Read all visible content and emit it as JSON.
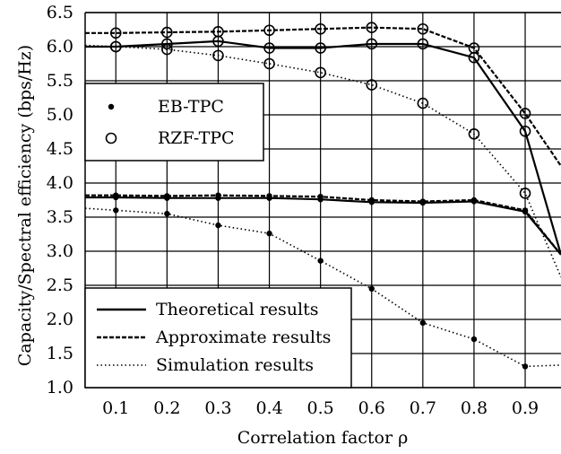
{
  "chart_data": {
    "type": "line",
    "title": "",
    "xlabel": "Correlation factor ρ",
    "ylabel": "Capacity/Spectral efficiency (bps/Hz)",
    "xlim": [
      0.04,
      0.97
    ],
    "ylim": [
      1.0,
      6.5
    ],
    "xticks": [
      "0.1",
      "0.2",
      "0.3",
      "0.4",
      "0.5",
      "0.6",
      "0.7",
      "0.8",
      "0.9"
    ],
    "yticks": [
      "1.0",
      "1.5",
      "2.0",
      "2.5",
      "3.0",
      "3.5",
      "4.0",
      "4.5",
      "5.0",
      "5.5",
      "6.0",
      "6.5"
    ],
    "grid": true,
    "series": [
      {
        "name": "RZF-TPC, Theoretical results",
        "scheme": "RZF-TPC",
        "style": "solid",
        "marker": "circle",
        "x": [
          0.04,
          0.1,
          0.2,
          0.3,
          0.4,
          0.5,
          0.6,
          0.7,
          0.8,
          0.9,
          0.97
        ],
        "y": [
          6.0,
          6.0,
          6.04,
          6.08,
          5.98,
          5.98,
          6.04,
          6.04,
          5.84,
          4.76,
          2.95
        ]
      },
      {
        "name": "RZF-TPC, Approximate results",
        "scheme": "RZF-TPC",
        "style": "dashed",
        "marker": "circle",
        "x": [
          0.04,
          0.1,
          0.2,
          0.3,
          0.4,
          0.5,
          0.6,
          0.7,
          0.8,
          0.9,
          0.97
        ],
        "y": [
          6.2,
          6.2,
          6.21,
          6.22,
          6.24,
          6.26,
          6.28,
          6.26,
          5.98,
          5.02,
          4.25
        ]
      },
      {
        "name": "RZF-TPC, Simulation results",
        "scheme": "RZF-TPC",
        "style": "dotted",
        "marker": "circle",
        "x": [
          0.04,
          0.1,
          0.2,
          0.3,
          0.4,
          0.5,
          0.6,
          0.7,
          0.8,
          0.9,
          0.97
        ],
        "y": [
          6.02,
          6.0,
          5.96,
          5.87,
          5.75,
          5.62,
          5.44,
          5.17,
          4.72,
          3.85,
          2.62
        ]
      },
      {
        "name": "EB-TPC, Theoretical results",
        "scheme": "EB-TPC",
        "style": "solid",
        "marker": "dot",
        "x": [
          0.04,
          0.1,
          0.2,
          0.3,
          0.4,
          0.5,
          0.6,
          0.7,
          0.8,
          0.9,
          0.97
        ],
        "y": [
          3.79,
          3.79,
          3.78,
          3.78,
          3.78,
          3.76,
          3.72,
          3.71,
          3.73,
          3.58,
          2.95
        ]
      },
      {
        "name": "EB-TPC, Approximate results",
        "scheme": "EB-TPC",
        "style": "dashed",
        "marker": "dot",
        "x": [
          0.04,
          0.1,
          0.2,
          0.3,
          0.4,
          0.5,
          0.6,
          0.7,
          0.8,
          0.9,
          0.97
        ],
        "y": [
          3.82,
          3.82,
          3.81,
          3.82,
          3.81,
          3.8,
          3.75,
          3.73,
          3.75,
          3.6,
          2.95
        ]
      },
      {
        "name": "EB-TPC, Simulation results",
        "scheme": "EB-TPC",
        "style": "dotted",
        "marker": "dot",
        "x": [
          0.04,
          0.1,
          0.2,
          0.3,
          0.4,
          0.5,
          0.6,
          0.7,
          0.8,
          0.9,
          0.97
        ],
        "y": [
          3.63,
          3.6,
          3.55,
          3.38,
          3.26,
          2.86,
          2.45,
          1.95,
          1.71,
          1.31,
          1.33
        ]
      }
    ],
    "legend_markers": {
      "position": "left-middle",
      "entries": [
        {
          "label": "EB-TPC",
          "marker": "dot"
        },
        {
          "label": "RZF-TPC",
          "marker": "circle"
        }
      ]
    },
    "legend_lines": {
      "position": "bottom-left",
      "entries": [
        {
          "label": "Theoretical results",
          "style": "solid"
        },
        {
          "label": "Approximate results",
          "style": "dashed"
        },
        {
          "label": "Simulation results",
          "style": "dotted"
        }
      ]
    }
  }
}
